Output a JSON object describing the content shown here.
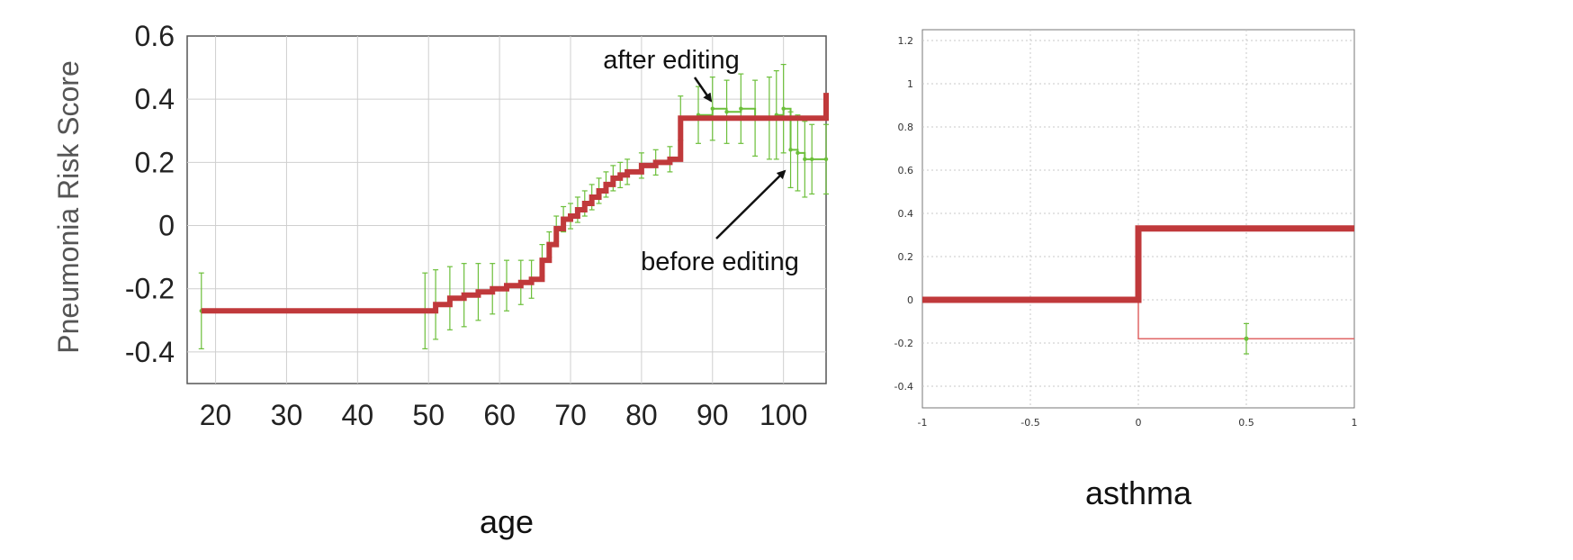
{
  "chart_data": [
    {
      "type": "line",
      "xlabel": "age",
      "ylabel": "Pneumonia Risk Score",
      "xlim": [
        16,
        106
      ],
      "ylim": [
        -0.5,
        0.6
      ],
      "xticks": [
        "20",
        "30",
        "40",
        "50",
        "60",
        "70",
        "80",
        "90",
        "100"
      ],
      "yticks": [
        "-0.4",
        "-0.2",
        "0",
        "0.2",
        "0.4",
        "0.6"
      ],
      "grid": true,
      "annotations": [
        "after editing",
        "before editing"
      ],
      "series": [
        {
          "x": [
            18,
            49.5,
            51,
            53,
            55,
            57,
            59,
            61,
            63,
            64.5,
            66,
            67,
            68,
            69,
            70,
            71,
            72,
            73,
            74,
            75,
            76,
            77,
            78,
            80,
            82,
            84,
            85.5,
            88,
            90,
            92,
            94,
            96,
            98,
            99,
            100,
            101,
            102,
            103,
            104,
            106
          ],
          "y": [
            -0.27,
            -0.27,
            -0.25,
            -0.23,
            -0.22,
            -0.21,
            -0.2,
            -0.19,
            -0.18,
            -0.17,
            -0.11,
            -0.06,
            -0.01,
            0.02,
            0.03,
            0.05,
            0.07,
            0.09,
            0.11,
            0.13,
            0.15,
            0.16,
            0.17,
            0.19,
            0.2,
            0.21,
            0.34,
            0.35,
            0.37,
            0.36,
            0.37,
            0.34,
            0.34,
            0.35,
            0.37,
            0.24,
            0.23,
            0.21,
            0.21,
            0.21
          ],
          "err": [
            0.12,
            0.12,
            0.11,
            0.1,
            0.1,
            0.09,
            0.08,
            0.08,
            0.07,
            0.06,
            0.05,
            0.04,
            0.04,
            0.04,
            0.04,
            0.04,
            0.04,
            0.04,
            0.04,
            0.04,
            0.04,
            0.04,
            0.04,
            0.04,
            0.04,
            0.04,
            0.07,
            0.09,
            0.1,
            0.1,
            0.11,
            0.12,
            0.13,
            0.14,
            0.14,
            0.12,
            0.12,
            0.12,
            0.11,
            0.11
          ],
          "color": "#6cbf3a"
        },
        {
          "x": [
            18,
            49.5,
            51,
            53,
            55,
            57,
            59,
            61,
            63,
            64.5,
            66,
            67,
            68,
            69,
            70,
            71,
            72,
            73,
            74,
            75,
            76,
            77,
            78,
            80,
            82,
            84,
            85.5,
            106
          ],
          "y": [
            -0.27,
            -0.27,
            -0.25,
            -0.23,
            -0.22,
            -0.21,
            -0.2,
            -0.19,
            -0.18,
            -0.17,
            -0.11,
            -0.06,
            -0.01,
            0.02,
            0.03,
            0.05,
            0.07,
            0.09,
            0.11,
            0.13,
            0.15,
            0.16,
            0.17,
            0.19,
            0.2,
            0.21,
            0.34,
            0.42
          ],
          "color": "#c0393b"
        }
      ]
    },
    {
      "type": "line",
      "xlabel": "asthma",
      "xlim": [
        -1,
        1
      ],
      "ylim": [
        -0.5,
        1.25
      ],
      "xticks": [
        "-1",
        "-0.5",
        "0",
        "0.5",
        "1"
      ],
      "yticks": [
        "-0.4",
        "-0.2",
        "0",
        "0.2",
        "0.4",
        "0.6",
        "0.8",
        "1",
        "1.2"
      ],
      "grid": true,
      "series": [
        {
          "x": [
            -1,
            0,
            0,
            1
          ],
          "y": [
            0,
            0,
            -0.18,
            -0.18
          ],
          "color": "#e06666"
        },
        {
          "x": [
            -1,
            0,
            0,
            1
          ],
          "y": [
            0,
            0,
            0.33,
            0.33
          ],
          "color": "#c0393b"
        }
      ],
      "points": [
        {
          "x": 0.5,
          "y": -0.18,
          "err": 0.07,
          "color": "#6cbf3a"
        }
      ]
    }
  ]
}
